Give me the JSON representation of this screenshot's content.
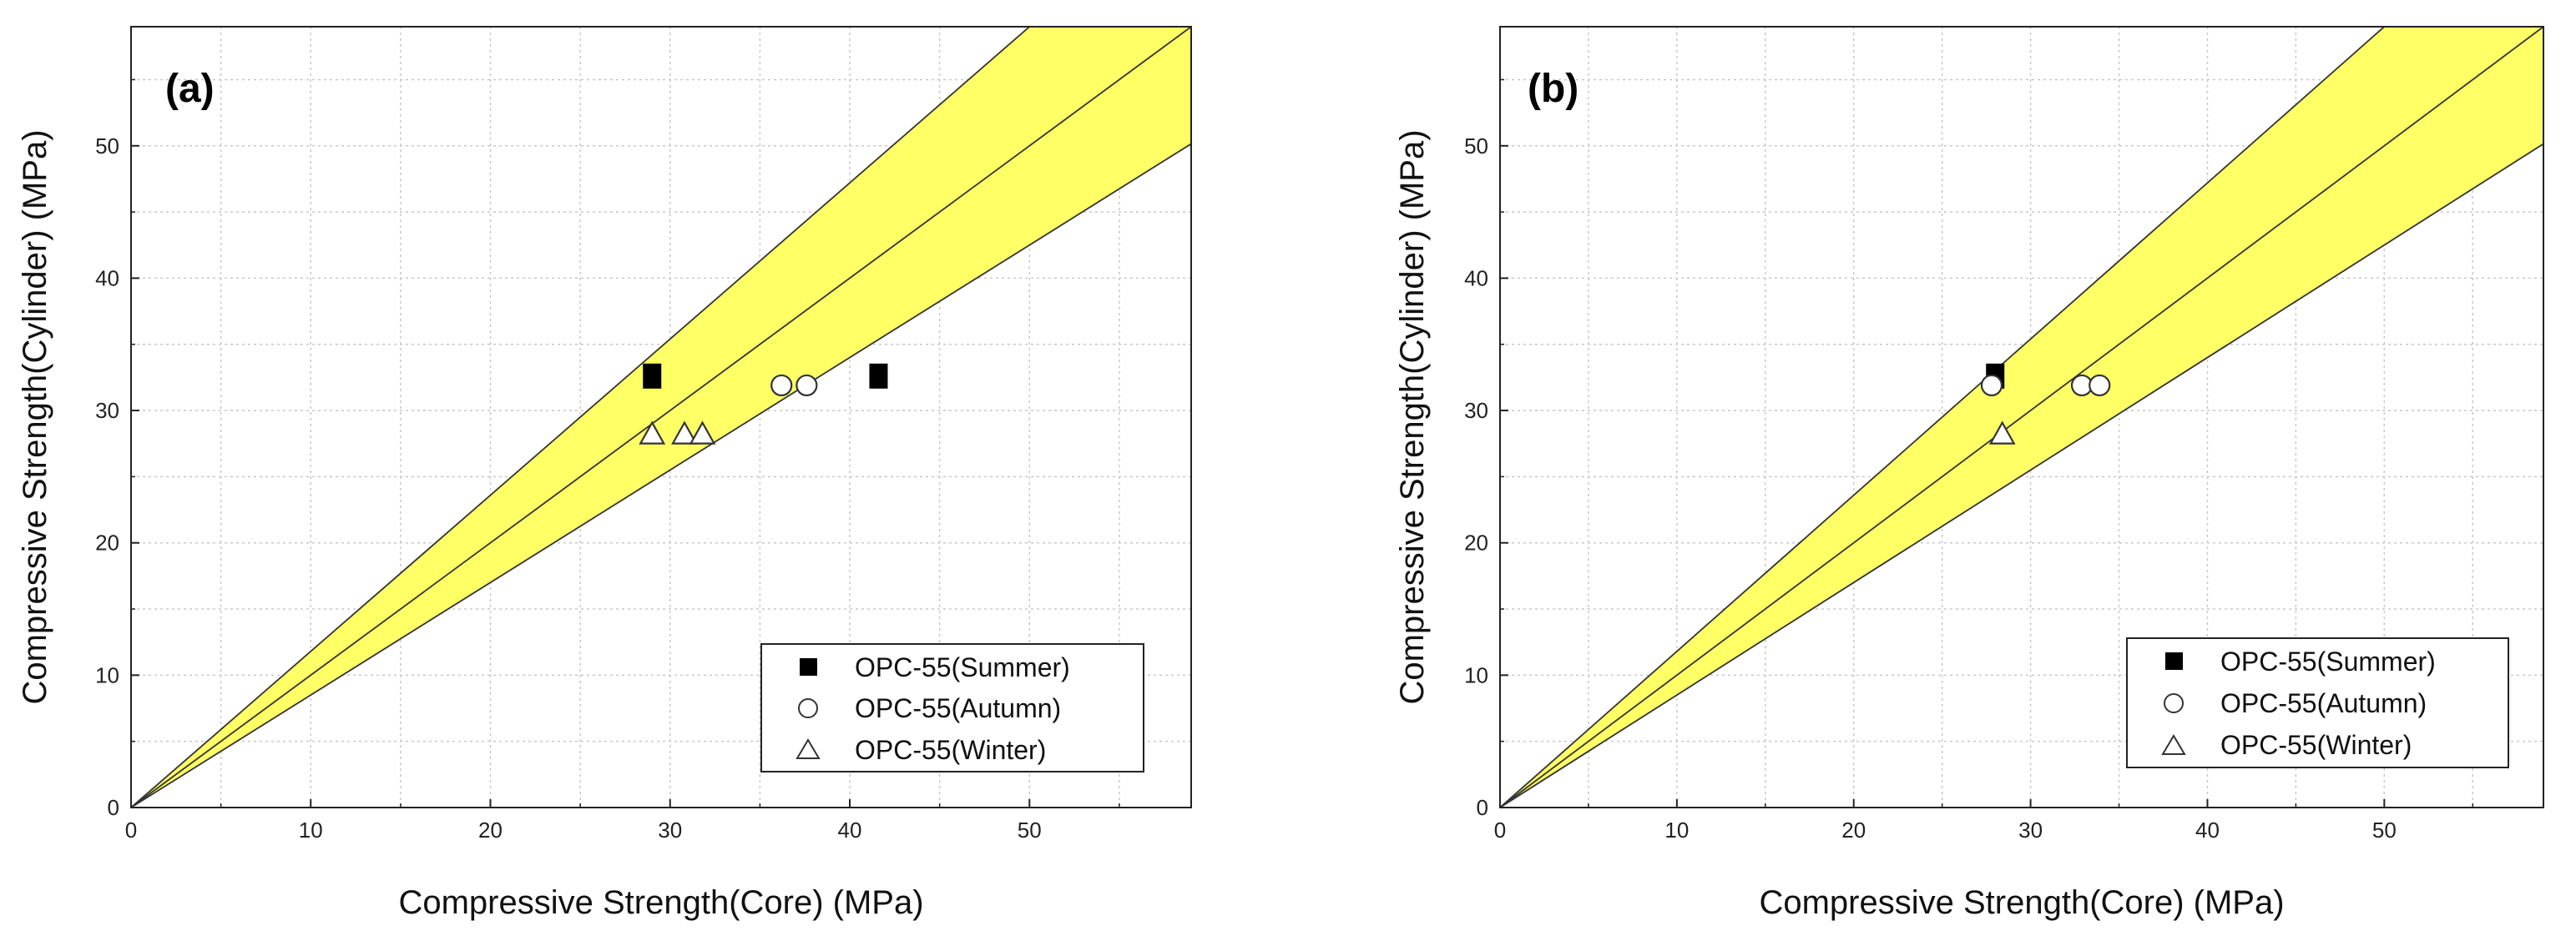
{
  "chart_data": [
    {
      "type": "scatter",
      "panel_label": "(a)",
      "xlabel": "Compressive Strength(Core) (MPa)",
      "ylabel": "Compressive Strength(Cylinder) (MPa)",
      "xlim": [
        0,
        59
      ],
      "ylim": [
        0,
        59
      ],
      "xticks": [
        0,
        10,
        20,
        30,
        40,
        50
      ],
      "yticks": [
        0,
        10,
        20,
        30,
        40,
        50
      ],
      "grid": true,
      "bands": {
        "upper_slope": 1.18,
        "center_slope": 1.0,
        "lower_slope": 0.85,
        "fill": "#ffff66"
      },
      "legend_position": "bottom-right",
      "series": [
        {
          "name": "OPC-55(Summer)",
          "marker": "square",
          "points": [
            [
              29.0,
              32.6
            ],
            [
              41.6,
              32.6
            ]
          ]
        },
        {
          "name": "OPC-55(Autumn)",
          "marker": "circle",
          "points": [
            [
              36.2,
              31.9
            ],
            [
              37.6,
              31.9
            ]
          ]
        },
        {
          "name": "OPC-55(Winter)",
          "marker": "triangle",
          "points": [
            [
              29.0,
              28.2
            ],
            [
              30.8,
              28.2
            ],
            [
              31.8,
              28.2
            ]
          ]
        }
      ]
    },
    {
      "type": "scatter",
      "panel_label": "(b)",
      "xlabel": "Compressive Strength(Core) (MPa)",
      "ylabel": "Compressive Strength(Cylinder) (MPa)",
      "xlim": [
        0,
        59
      ],
      "ylim": [
        0,
        59
      ],
      "xticks": [
        0,
        10,
        20,
        30,
        40,
        50
      ],
      "yticks": [
        0,
        10,
        20,
        30,
        40,
        50
      ],
      "grid": true,
      "bands": {
        "upper_slope": 1.18,
        "center_slope": 1.0,
        "lower_slope": 0.85,
        "fill": "#ffff66"
      },
      "legend_position": "bottom-right",
      "series": [
        {
          "name": "OPC-55(Summer)",
          "marker": "square",
          "points": [
            [
              28.0,
              32.6
            ]
          ]
        },
        {
          "name": "OPC-55(Autumn)",
          "marker": "circle",
          "points": [
            [
              27.8,
              31.9
            ],
            [
              32.9,
              31.9
            ],
            [
              33.9,
              31.9
            ]
          ]
        },
        {
          "name": "OPC-55(Winter)",
          "marker": "triangle",
          "points": [
            [
              28.4,
              28.2
            ]
          ]
        }
      ]
    }
  ]
}
